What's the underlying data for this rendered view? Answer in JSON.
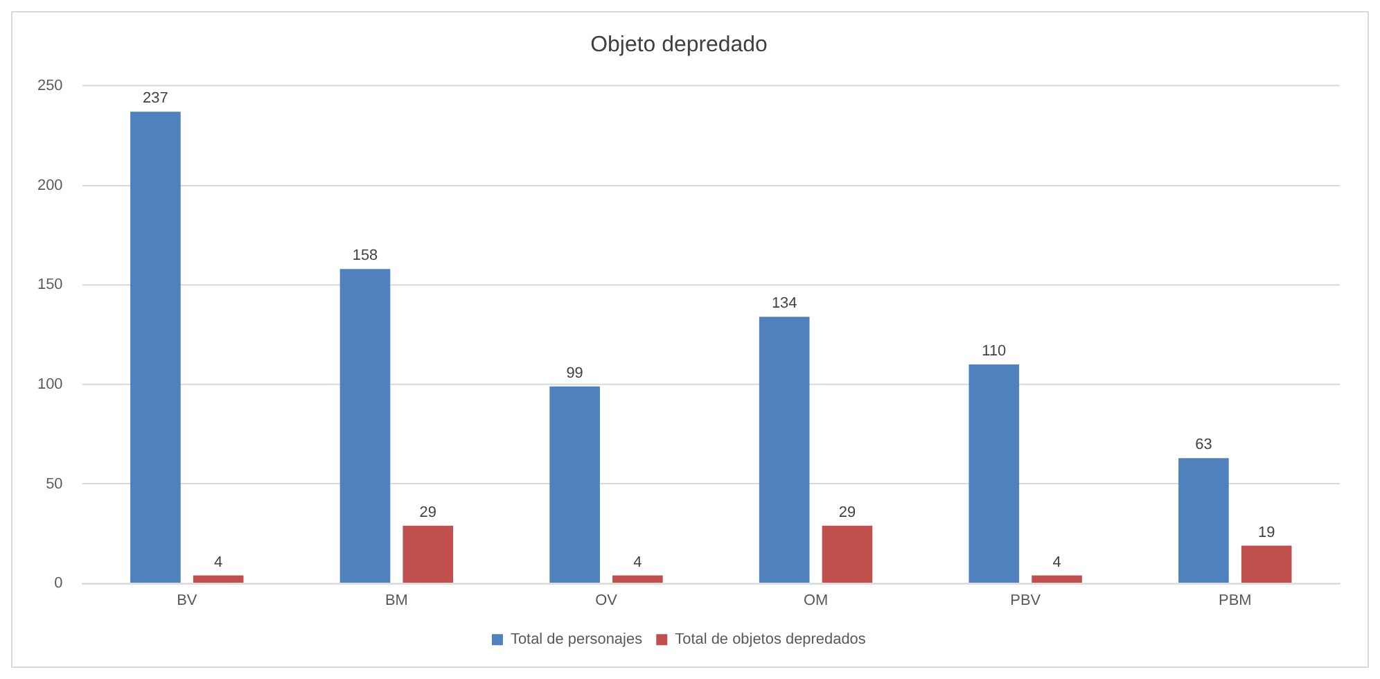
{
  "chart_data": {
    "type": "bar",
    "title": "Objeto depredado",
    "categories": [
      "BV",
      "BM",
      "OV",
      "OM",
      "PBV",
      "PBM"
    ],
    "series": [
      {
        "name": "Total de personajes",
        "color": "#4f81bd",
        "values": [
          237,
          158,
          99,
          134,
          110,
          63
        ]
      },
      {
        "name": "Total de objetos depredados",
        "color": "#c0504d",
        "values": [
          4,
          29,
          4,
          29,
          4,
          19
        ]
      }
    ],
    "ylim": [
      0,
      250
    ],
    "yticks": [
      0,
      50,
      100,
      150,
      200,
      250
    ],
    "grid": "y",
    "legend": "bottom",
    "data_labels": true
  }
}
